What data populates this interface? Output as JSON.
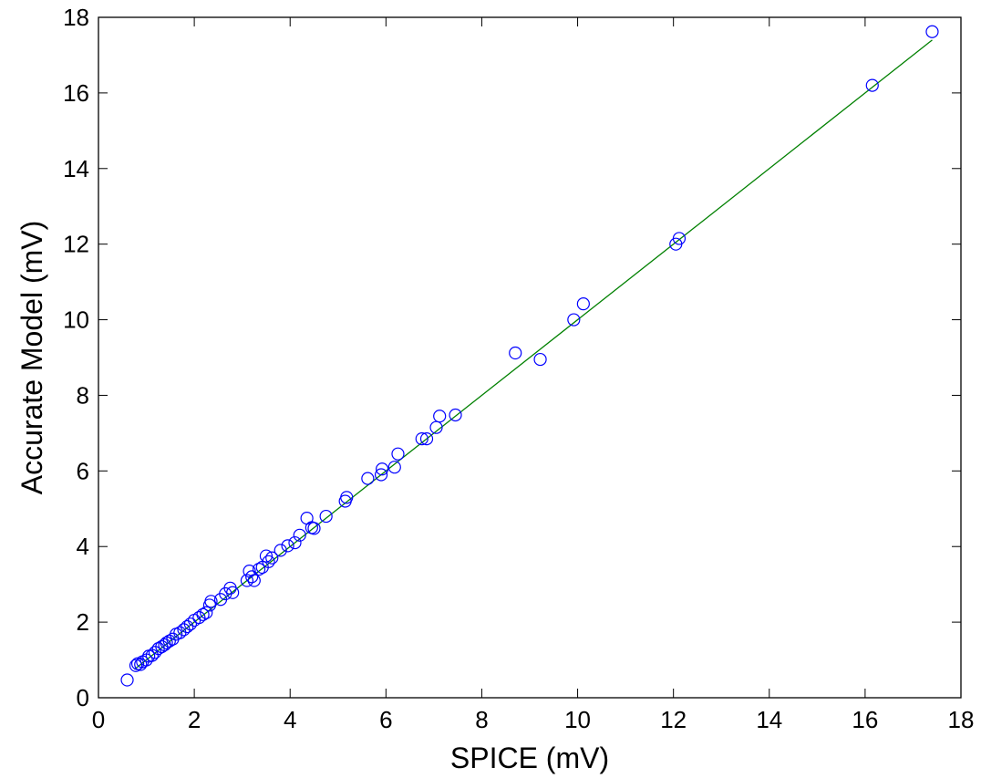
{
  "chart_data": {
    "type": "scatter",
    "title": "",
    "xlabel": "SPICE (mV)",
    "ylabel": "Accurate Model (mV)",
    "xlim": [
      0,
      18
    ],
    "ylim": [
      0,
      18
    ],
    "xticks": [
      "0",
      "2",
      "4",
      "6",
      "8",
      "10",
      "12",
      "14",
      "16",
      "18"
    ],
    "yticks": [
      "0",
      "2",
      "4",
      "6",
      "8",
      "10",
      "12",
      "14",
      "16",
      "18"
    ],
    "grid": false,
    "legend": false,
    "marker_color": "#0000ff",
    "fit_line_color": "#008000",
    "fit_line": {
      "x": [
        0.75,
        17.4
      ],
      "y": [
        0.75,
        17.4
      ]
    },
    "series": [
      {
        "points": [
          [
            0.6,
            0.47
          ],
          [
            0.78,
            0.85
          ],
          [
            0.82,
            0.9
          ],
          [
            0.88,
            0.88
          ],
          [
            0.92,
            0.95
          ],
          [
            1.0,
            1.0
          ],
          [
            1.05,
            1.1
          ],
          [
            1.12,
            1.12
          ],
          [
            1.18,
            1.2
          ],
          [
            1.25,
            1.3
          ],
          [
            1.32,
            1.35
          ],
          [
            1.38,
            1.4
          ],
          [
            1.42,
            1.45
          ],
          [
            1.48,
            1.5
          ],
          [
            1.55,
            1.55
          ],
          [
            1.62,
            1.68
          ],
          [
            1.7,
            1.72
          ],
          [
            1.78,
            1.8
          ],
          [
            1.85,
            1.88
          ],
          [
            1.92,
            1.95
          ],
          [
            2.0,
            2.05
          ],
          [
            2.1,
            2.12
          ],
          [
            2.18,
            2.2
          ],
          [
            2.25,
            2.25
          ],
          [
            2.32,
            2.45
          ],
          [
            2.35,
            2.55
          ],
          [
            2.55,
            2.6
          ],
          [
            2.65,
            2.75
          ],
          [
            2.75,
            2.9
          ],
          [
            2.8,
            2.78
          ],
          [
            3.1,
            3.1
          ],
          [
            3.15,
            3.35
          ],
          [
            3.2,
            3.2
          ],
          [
            3.25,
            3.1
          ],
          [
            3.35,
            3.4
          ],
          [
            3.42,
            3.45
          ],
          [
            3.5,
            3.75
          ],
          [
            3.55,
            3.6
          ],
          [
            3.62,
            3.7
          ],
          [
            3.8,
            3.9
          ],
          [
            3.95,
            4.02
          ],
          [
            4.1,
            4.1
          ],
          [
            4.2,
            4.3
          ],
          [
            4.35,
            4.75
          ],
          [
            4.45,
            4.5
          ],
          [
            4.5,
            4.48
          ],
          [
            4.75,
            4.8
          ],
          [
            5.15,
            5.2
          ],
          [
            5.18,
            5.3
          ],
          [
            5.62,
            5.8
          ],
          [
            5.9,
            5.9
          ],
          [
            5.92,
            6.05
          ],
          [
            6.18,
            6.1
          ],
          [
            6.25,
            6.45
          ],
          [
            6.75,
            6.85
          ],
          [
            6.85,
            6.85
          ],
          [
            7.05,
            7.15
          ],
          [
            7.12,
            7.45
          ],
          [
            7.45,
            7.48
          ],
          [
            8.7,
            9.12
          ],
          [
            9.22,
            8.95
          ],
          [
            9.92,
            10.0
          ],
          [
            10.12,
            10.42
          ],
          [
            12.05,
            12.0
          ],
          [
            12.12,
            12.15
          ],
          [
            16.15,
            16.2
          ],
          [
            17.4,
            17.62
          ]
        ]
      }
    ]
  }
}
